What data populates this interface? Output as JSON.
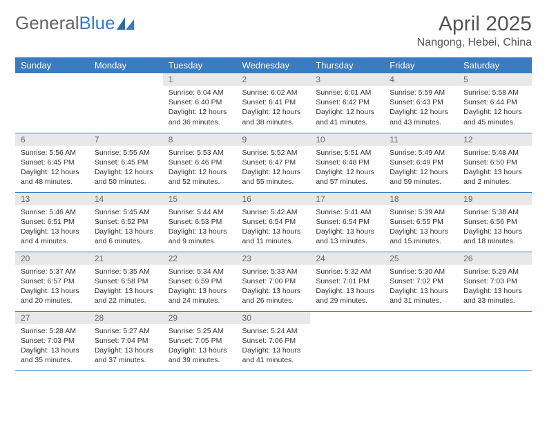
{
  "logo": {
    "part1": "General",
    "part2": "Blue"
  },
  "title": "April 2025",
  "location": "Nangong, Hebei, China",
  "colors": {
    "header_bg": "#3b7bbf",
    "header_text": "#ffffff",
    "daynum_bg": "#e8e8e8",
    "daynum_text": "#666666",
    "body_text": "#333333",
    "rule": "#3b7bbf",
    "page_bg": "#ffffff"
  },
  "weekdays": [
    "Sunday",
    "Monday",
    "Tuesday",
    "Wednesday",
    "Thursday",
    "Friday",
    "Saturday"
  ],
  "weeks": [
    [
      {
        "empty": true
      },
      {
        "empty": true
      },
      {
        "day": "1",
        "sunrise": "Sunrise: 6:04 AM",
        "sunset": "Sunset: 6:40 PM",
        "daylight1": "Daylight: 12 hours",
        "daylight2": "and 36 minutes."
      },
      {
        "day": "2",
        "sunrise": "Sunrise: 6:02 AM",
        "sunset": "Sunset: 6:41 PM",
        "daylight1": "Daylight: 12 hours",
        "daylight2": "and 38 minutes."
      },
      {
        "day": "3",
        "sunrise": "Sunrise: 6:01 AM",
        "sunset": "Sunset: 6:42 PM",
        "daylight1": "Daylight: 12 hours",
        "daylight2": "and 41 minutes."
      },
      {
        "day": "4",
        "sunrise": "Sunrise: 5:59 AM",
        "sunset": "Sunset: 6:43 PM",
        "daylight1": "Daylight: 12 hours",
        "daylight2": "and 43 minutes."
      },
      {
        "day": "5",
        "sunrise": "Sunrise: 5:58 AM",
        "sunset": "Sunset: 6:44 PM",
        "daylight1": "Daylight: 12 hours",
        "daylight2": "and 45 minutes."
      }
    ],
    [
      {
        "day": "6",
        "sunrise": "Sunrise: 5:56 AM",
        "sunset": "Sunset: 6:45 PM",
        "daylight1": "Daylight: 12 hours",
        "daylight2": "and 48 minutes."
      },
      {
        "day": "7",
        "sunrise": "Sunrise: 5:55 AM",
        "sunset": "Sunset: 6:45 PM",
        "daylight1": "Daylight: 12 hours",
        "daylight2": "and 50 minutes."
      },
      {
        "day": "8",
        "sunrise": "Sunrise: 5:53 AM",
        "sunset": "Sunset: 6:46 PM",
        "daylight1": "Daylight: 12 hours",
        "daylight2": "and 52 minutes."
      },
      {
        "day": "9",
        "sunrise": "Sunrise: 5:52 AM",
        "sunset": "Sunset: 6:47 PM",
        "daylight1": "Daylight: 12 hours",
        "daylight2": "and 55 minutes."
      },
      {
        "day": "10",
        "sunrise": "Sunrise: 5:51 AM",
        "sunset": "Sunset: 6:48 PM",
        "daylight1": "Daylight: 12 hours",
        "daylight2": "and 57 minutes."
      },
      {
        "day": "11",
        "sunrise": "Sunrise: 5:49 AM",
        "sunset": "Sunset: 6:49 PM",
        "daylight1": "Daylight: 12 hours",
        "daylight2": "and 59 minutes."
      },
      {
        "day": "12",
        "sunrise": "Sunrise: 5:48 AM",
        "sunset": "Sunset: 6:50 PM",
        "daylight1": "Daylight: 13 hours",
        "daylight2": "and 2 minutes."
      }
    ],
    [
      {
        "day": "13",
        "sunrise": "Sunrise: 5:46 AM",
        "sunset": "Sunset: 6:51 PM",
        "daylight1": "Daylight: 13 hours",
        "daylight2": "and 4 minutes."
      },
      {
        "day": "14",
        "sunrise": "Sunrise: 5:45 AM",
        "sunset": "Sunset: 6:52 PM",
        "daylight1": "Daylight: 13 hours",
        "daylight2": "and 6 minutes."
      },
      {
        "day": "15",
        "sunrise": "Sunrise: 5:44 AM",
        "sunset": "Sunset: 6:53 PM",
        "daylight1": "Daylight: 13 hours",
        "daylight2": "and 9 minutes."
      },
      {
        "day": "16",
        "sunrise": "Sunrise: 5:42 AM",
        "sunset": "Sunset: 6:54 PM",
        "daylight1": "Daylight: 13 hours",
        "daylight2": "and 11 minutes."
      },
      {
        "day": "17",
        "sunrise": "Sunrise: 5:41 AM",
        "sunset": "Sunset: 6:54 PM",
        "daylight1": "Daylight: 13 hours",
        "daylight2": "and 13 minutes."
      },
      {
        "day": "18",
        "sunrise": "Sunrise: 5:39 AM",
        "sunset": "Sunset: 6:55 PM",
        "daylight1": "Daylight: 13 hours",
        "daylight2": "and 15 minutes."
      },
      {
        "day": "19",
        "sunrise": "Sunrise: 5:38 AM",
        "sunset": "Sunset: 6:56 PM",
        "daylight1": "Daylight: 13 hours",
        "daylight2": "and 18 minutes."
      }
    ],
    [
      {
        "day": "20",
        "sunrise": "Sunrise: 5:37 AM",
        "sunset": "Sunset: 6:57 PM",
        "daylight1": "Daylight: 13 hours",
        "daylight2": "and 20 minutes."
      },
      {
        "day": "21",
        "sunrise": "Sunrise: 5:35 AM",
        "sunset": "Sunset: 6:58 PM",
        "daylight1": "Daylight: 13 hours",
        "daylight2": "and 22 minutes."
      },
      {
        "day": "22",
        "sunrise": "Sunrise: 5:34 AM",
        "sunset": "Sunset: 6:59 PM",
        "daylight1": "Daylight: 13 hours",
        "daylight2": "and 24 minutes."
      },
      {
        "day": "23",
        "sunrise": "Sunrise: 5:33 AM",
        "sunset": "Sunset: 7:00 PM",
        "daylight1": "Daylight: 13 hours",
        "daylight2": "and 26 minutes."
      },
      {
        "day": "24",
        "sunrise": "Sunrise: 5:32 AM",
        "sunset": "Sunset: 7:01 PM",
        "daylight1": "Daylight: 13 hours",
        "daylight2": "and 29 minutes."
      },
      {
        "day": "25",
        "sunrise": "Sunrise: 5:30 AM",
        "sunset": "Sunset: 7:02 PM",
        "daylight1": "Daylight: 13 hours",
        "daylight2": "and 31 minutes."
      },
      {
        "day": "26",
        "sunrise": "Sunrise: 5:29 AM",
        "sunset": "Sunset: 7:03 PM",
        "daylight1": "Daylight: 13 hours",
        "daylight2": "and 33 minutes."
      }
    ],
    [
      {
        "day": "27",
        "sunrise": "Sunrise: 5:28 AM",
        "sunset": "Sunset: 7:03 PM",
        "daylight1": "Daylight: 13 hours",
        "daylight2": "and 35 minutes."
      },
      {
        "day": "28",
        "sunrise": "Sunrise: 5:27 AM",
        "sunset": "Sunset: 7:04 PM",
        "daylight1": "Daylight: 13 hours",
        "daylight2": "and 37 minutes."
      },
      {
        "day": "29",
        "sunrise": "Sunrise: 5:25 AM",
        "sunset": "Sunset: 7:05 PM",
        "daylight1": "Daylight: 13 hours",
        "daylight2": "and 39 minutes."
      },
      {
        "day": "30",
        "sunrise": "Sunrise: 5:24 AM",
        "sunset": "Sunset: 7:06 PM",
        "daylight1": "Daylight: 13 hours",
        "daylight2": "and 41 minutes."
      },
      {
        "empty": true
      },
      {
        "empty": true
      },
      {
        "empty": true
      }
    ]
  ]
}
